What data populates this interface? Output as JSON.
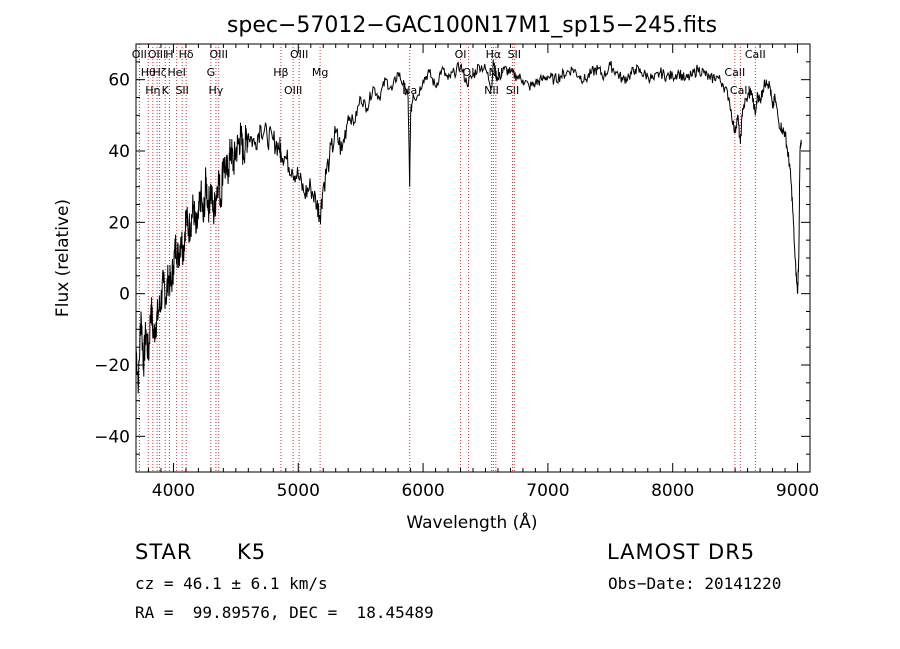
{
  "chart_data": {
    "type": "line",
    "title": "spec−57012−GAC100N17M1_sp15−245.fits",
    "xlabel": "Wavelength (Å)",
    "ylabel": "Flux (relative)",
    "xlim": [
      3700,
      9100
    ],
    "ylim": [
      -50,
      70
    ],
    "xticks": [
      4000,
      5000,
      6000,
      7000,
      8000,
      9000
    ],
    "xtick_labels": [
      "4000",
      "5000",
      "6000",
      "7000",
      "8000",
      "9000"
    ],
    "yticks": [
      -40,
      -20,
      0,
      20,
      40,
      60
    ],
    "ytick_labels": [
      "−40",
      "−20",
      "0",
      "20",
      "40",
      "60"
    ],
    "series": [
      {
        "color": "#000000",
        "x": [
          3700,
          3720,
          3740,
          3760,
          3780,
          3800,
          3820,
          3840,
          3860,
          3880,
          3900,
          3920,
          3940,
          3960,
          3980,
          4000,
          4020,
          4040,
          4060,
          4080,
          4100,
          4120,
          4140,
          4160,
          4180,
          4200,
          4220,
          4240,
          4260,
          4280,
          4300,
          4320,
          4340,
          4360,
          4380,
          4400,
          4420,
          4440,
          4460,
          4480,
          4500,
          4520,
          4540,
          4560,
          4580,
          4600,
          4650,
          4700,
          4750,
          4800,
          4850,
          4861,
          4900,
          4950,
          5000,
          5050,
          5100,
          5150,
          5175,
          5200,
          5250,
          5300,
          5350,
          5400,
          5450,
          5500,
          5550,
          5600,
          5650,
          5700,
          5750,
          5800,
          5850,
          5880,
          5893,
          5900,
          5920,
          5950,
          6000,
          6050,
          6100,
          6150,
          6200,
          6250,
          6300,
          6350,
          6400,
          6450,
          6500,
          6550,
          6563,
          6580,
          6600,
          6650,
          6700,
          6750,
          6800,
          6850,
          6900,
          6950,
          7000,
          7050,
          7100,
          7150,
          7200,
          7250,
          7300,
          7350,
          7400,
          7450,
          7500,
          7550,
          7600,
          7650,
          7700,
          7750,
          7800,
          7850,
          7900,
          7950,
          8000,
          8050,
          8100,
          8150,
          8200,
          8250,
          8300,
          8350,
          8400,
          8450,
          8498,
          8520,
          8542,
          8560,
          8600,
          8630,
          8662,
          8680,
          8700,
          8720,
          8750,
          8780,
          8800,
          8820,
          8850,
          8880,
          8900,
          8920,
          8940,
          8960,
          8980,
          9000,
          9010,
          9020,
          9030
        ],
        "y": [
          -15,
          -25,
          -5,
          -20,
          -10,
          -18,
          -3,
          -12,
          -8,
          -5,
          -2,
          3,
          -1,
          5,
          2,
          8,
          14,
          10,
          16,
          12,
          22,
          18,
          20,
          25,
          17,
          21,
          28,
          20,
          32,
          24,
          30,
          22,
          27,
          33,
          26,
          38,
          34,
          35,
          41,
          36,
          40,
          42,
          44,
          39,
          43,
          45,
          42,
          47,
          44,
          43,
          41,
          40,
          38,
          35,
          33,
          28,
          30,
          25,
          22,
          30,
          38,
          45,
          40,
          50,
          48,
          55,
          52,
          58,
          55,
          60,
          57,
          62,
          58,
          55,
          30,
          50,
          56,
          55,
          60,
          62,
          58,
          63,
          60,
          62,
          64,
          59,
          61,
          64,
          63,
          58,
          65,
          62,
          60,
          63,
          62,
          61,
          60,
          58,
          59,
          60,
          61,
          60,
          61,
          62,
          63,
          61,
          60,
          62,
          63,
          61,
          64,
          62,
          60,
          61,
          63,
          62,
          61,
          60,
          62,
          61,
          61,
          62,
          60,
          61,
          63,
          62,
          60,
          61,
          59,
          55,
          45,
          50,
          42,
          52,
          55,
          57,
          50,
          56,
          54,
          57,
          60,
          58,
          52,
          55,
          48,
          46,
          45,
          40,
          35,
          25,
          10,
          0,
          10,
          40,
          42
        ]
      }
    ],
    "line_markers": [
      {
        "x": 3727,
        "label": "OII"
      },
      {
        "x": 3798,
        "label": "Hθ"
      },
      {
        "x": 3835,
        "label": "Hη"
      },
      {
        "x": 3869,
        "label": "OIII"
      },
      {
        "x": 3889,
        "label": "Hζ"
      },
      {
        "x": 3934,
        "label": "K"
      },
      {
        "x": 3968,
        "label": "H"
      },
      {
        "x": 4026,
        "label": "HeI"
      },
      {
        "x": 4070,
        "label": "SII"
      },
      {
        "x": 4102,
        "label": "Hδ"
      },
      {
        "x": 4300,
        "label": "G"
      },
      {
        "x": 4340,
        "label": "Hγ"
      },
      {
        "x": 4363,
        "label": "OIII"
      },
      {
        "x": 4861,
        "label": "Hβ"
      },
      {
        "x": 4959,
        "label": "OIII"
      },
      {
        "x": 5007,
        "label": "OIII"
      },
      {
        "x": 5175,
        "label": "Mg"
      },
      {
        "x": 5893,
        "label": "Na"
      },
      {
        "x": 6300,
        "label": "OI"
      },
      {
        "x": 6364,
        "label": "OI"
      },
      {
        "x": 6548,
        "label": "NII"
      },
      {
        "x": 6563,
        "label": "Hα"
      },
      {
        "x": 6583,
        "label": "NII"
      },
      {
        "x": 6717,
        "label": "SII"
      },
      {
        "x": 6731,
        "label": "SII"
      },
      {
        "x": 8498,
        "label": "CaII"
      },
      {
        "x": 8542,
        "label": "CaII"
      },
      {
        "x": 8662,
        "label": "CaII"
      }
    ]
  },
  "info": {
    "class_label": "STAR",
    "subclass": "K5",
    "survey": "LAMOST DR5",
    "redshift": "cz = 46.1 ± 6.1 km/s",
    "obs_date": "Obs−Date: 20141220",
    "coords": "RA =  99.89576, DEC =  18.45489"
  }
}
